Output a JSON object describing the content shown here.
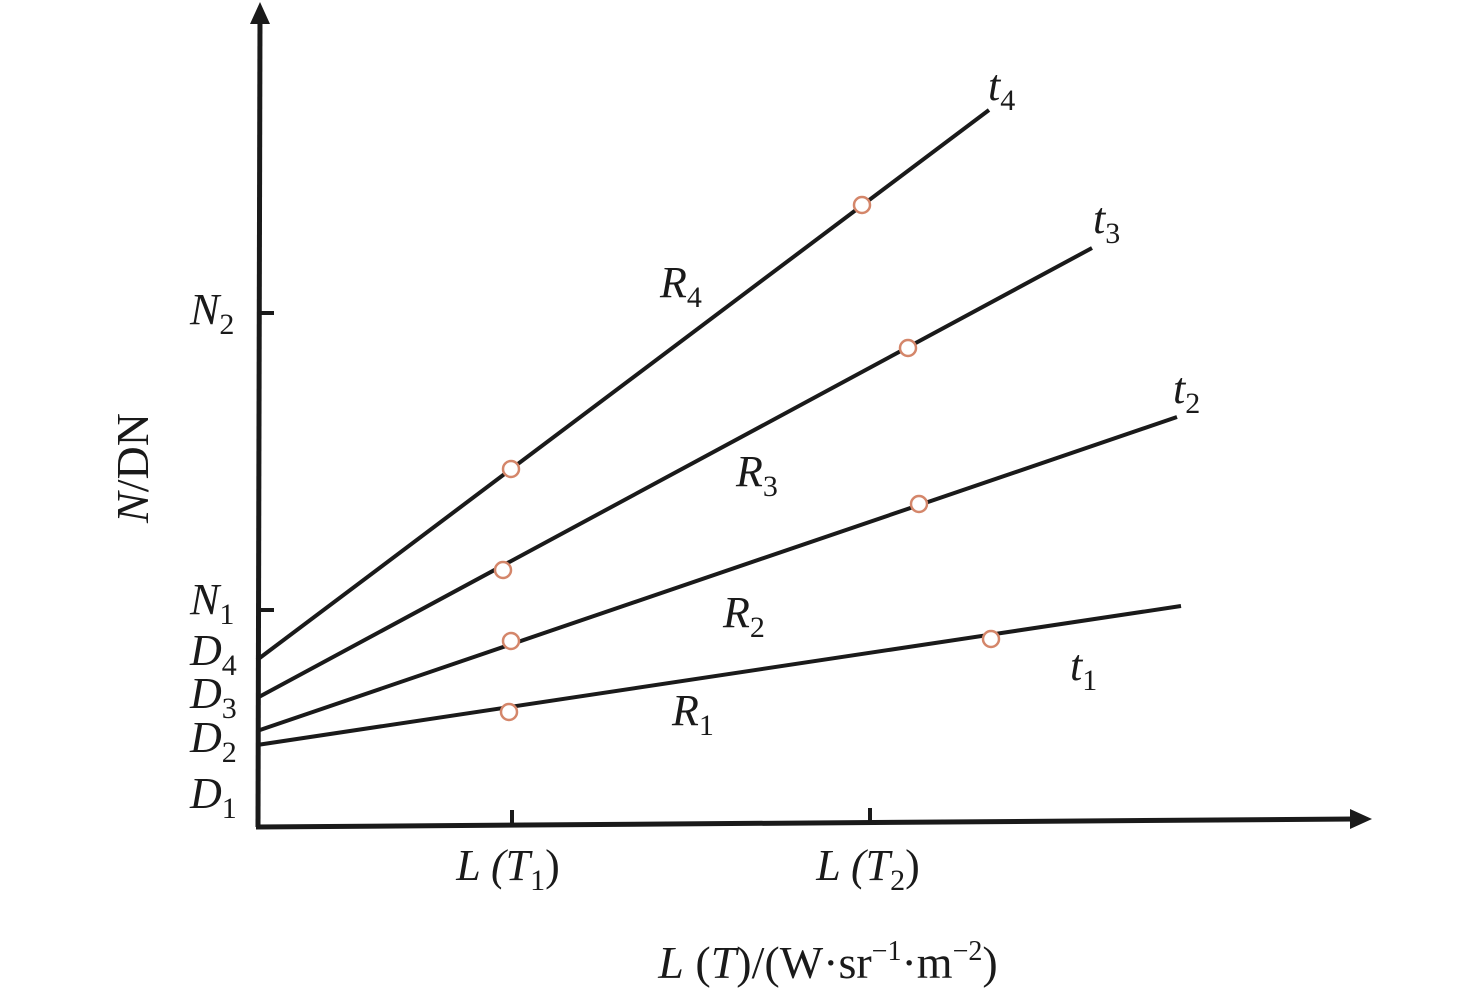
{
  "axes": {
    "y_label": {
      "italic": "N",
      "rest": "/DN"
    },
    "x_label": {
      "pre": "L",
      "mid": " (",
      "var": "T",
      "post1": ")/(W·sr",
      "sup1": "−1",
      "post2": "·m",
      "sup2": "−2",
      "post3": ")"
    }
  },
  "y_ticks": [
    {
      "main": "N",
      "sub": "2"
    },
    {
      "main": "N",
      "sub": "1"
    }
  ],
  "intercepts": [
    {
      "main": "D",
      "sub": "4"
    },
    {
      "main": "D",
      "sub": "3"
    },
    {
      "main": "D",
      "sub": "2"
    },
    {
      "main": "D",
      "sub": "1"
    }
  ],
  "x_ticks": [
    {
      "pre": "L (",
      "var": "T",
      "sub": "1",
      "post": ")"
    },
    {
      "pre": "L (",
      "var": "T",
      "sub": "2",
      "post": ")"
    }
  ],
  "lines": [
    {
      "id": "1",
      "response": {
        "main": "R",
        "sub": "1"
      },
      "time": {
        "main": "t",
        "sub": "1"
      }
    },
    {
      "id": "2",
      "response": {
        "main": "R",
        "sub": "2"
      },
      "time": {
        "main": "t",
        "sub": "2"
      }
    },
    {
      "id": "3",
      "response": {
        "main": "R",
        "sub": "3"
      },
      "time": {
        "main": "t",
        "sub": "3"
      }
    },
    {
      "id": "4",
      "response": {
        "main": "R",
        "sub": "4"
      },
      "time": {
        "main": "t",
        "sub": "4"
      }
    }
  ],
  "colors": {
    "line": "#1a1a1a",
    "marker": "#d4866a"
  }
}
